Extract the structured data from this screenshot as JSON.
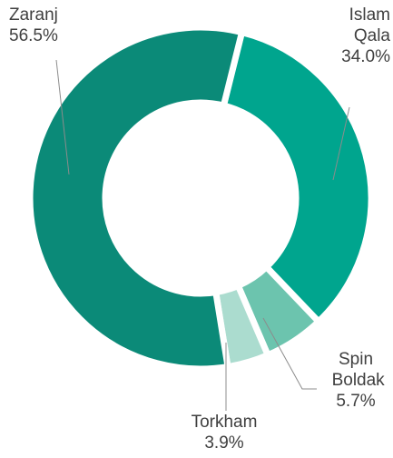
{
  "chart_data": {
    "type": "donut",
    "categories": [
      "Zaranj",
      "Islam Qala",
      "Spin Boldak",
      "Torkham"
    ],
    "values": [
      56.5,
      34.0,
      5.7,
      3.9
    ],
    "value_labels": [
      "56.5%",
      "34.0%",
      "5.7%",
      "3.9%"
    ],
    "colors": [
      "#0b8a78",
      "#00a58e",
      "#6cc4ae",
      "#abdccf"
    ]
  }
}
